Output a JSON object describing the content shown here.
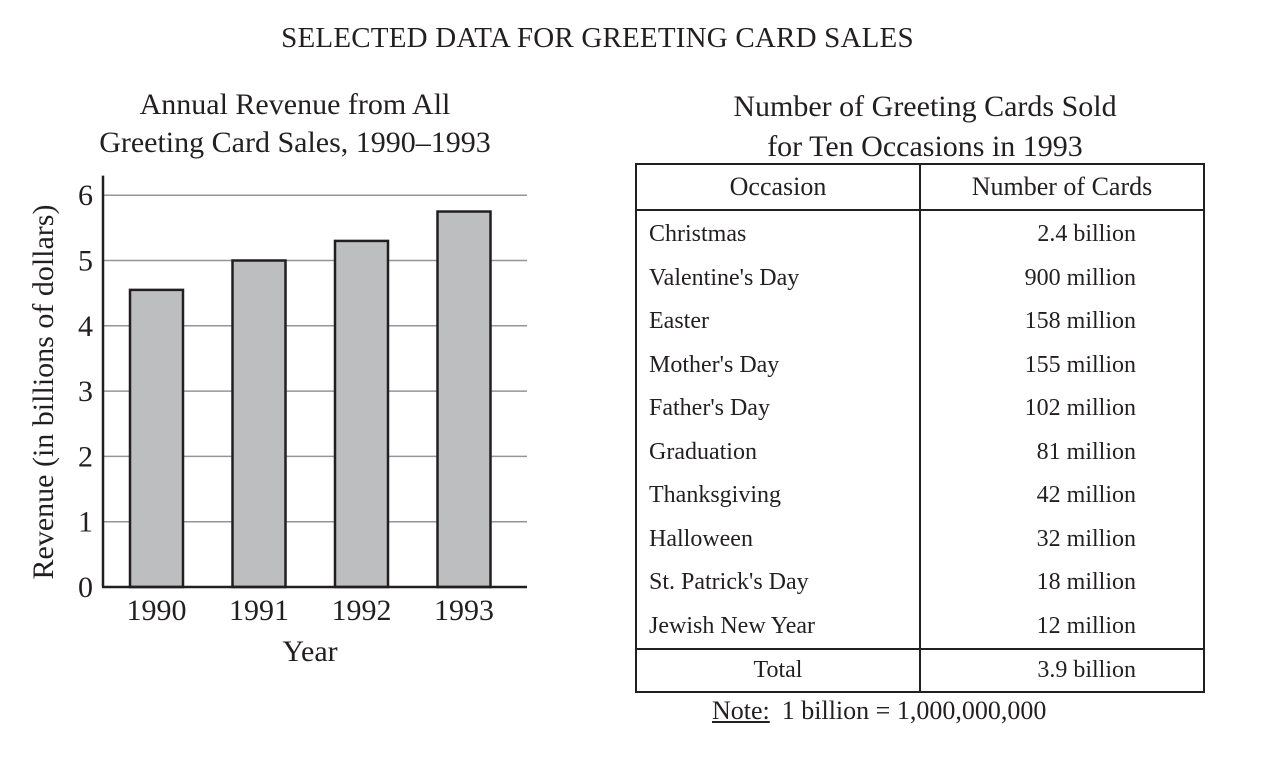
{
  "page": {
    "title": "SELECTED DATA FOR GREETING CARD SALES"
  },
  "chart_data": {
    "type": "bar",
    "title_lines": [
      "Annual Revenue from All",
      "Greeting Card Sales, 1990–1993"
    ],
    "categories": [
      "1990",
      "1991",
      "1992",
      "1993"
    ],
    "values": [
      4.55,
      5.0,
      5.3,
      5.75
    ],
    "xlabel": "Year",
    "ylabel": "Revenue (in billions of dollars)",
    "ylim": [
      0,
      6.3
    ],
    "yticks": [
      0,
      1,
      2,
      3,
      4,
      5,
      6
    ],
    "grid": true,
    "bar_color": "#bcbec0",
    "axis_color": "#231f20",
    "grid_color": "#939598"
  },
  "table": {
    "title_lines": [
      "Number of Greeting Cards Sold",
      "for Ten Occasions in 1993"
    ],
    "headers": {
      "occasion": "Occasion",
      "number": "Number of Cards"
    },
    "rows": [
      {
        "occasion": "Christmas",
        "number": "2.4 billion"
      },
      {
        "occasion": "Valentine's Day",
        "number": "900 million"
      },
      {
        "occasion": "Easter",
        "number": "158 million"
      },
      {
        "occasion": "Mother's Day",
        "number": "155 million"
      },
      {
        "occasion": "Father's Day",
        "number": "102 million"
      },
      {
        "occasion": "Graduation",
        "number": "81 million"
      },
      {
        "occasion": "Thanksgiving",
        "number": "42 million"
      },
      {
        "occasion": "Halloween",
        "number": "32 million"
      },
      {
        "occasion": "St. Patrick's Day",
        "number": "18 million"
      },
      {
        "occasion": "Jewish New Year",
        "number": "12 million"
      }
    ],
    "total": {
      "label": "Total",
      "number": "3.9 billion"
    }
  },
  "note": {
    "label": "Note:",
    "text": "1 billion = 1,000,000,000"
  }
}
